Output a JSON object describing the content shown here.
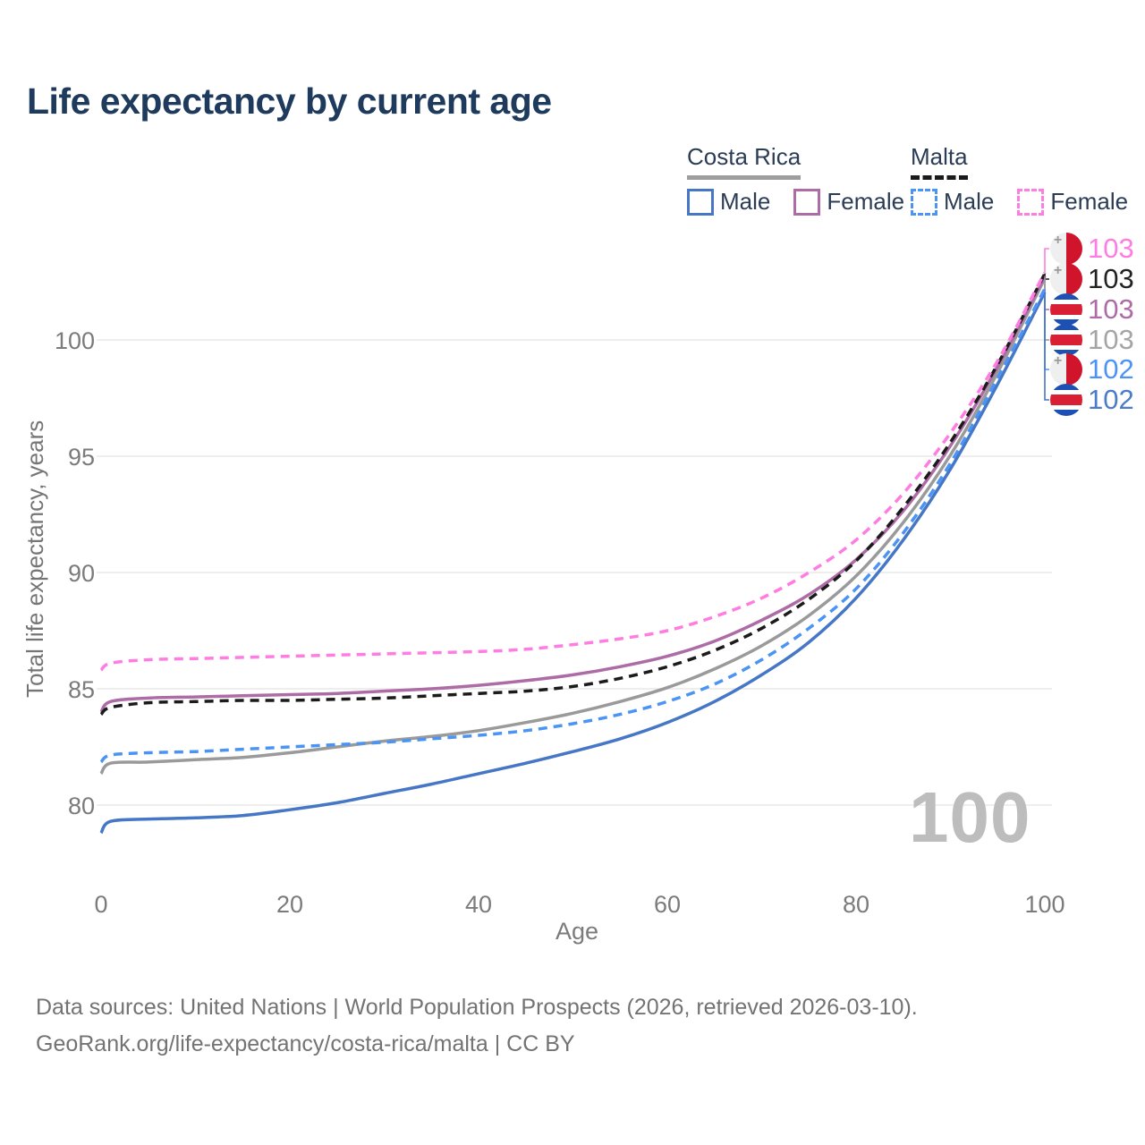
{
  "title": "Life expectancy by current age",
  "legend": {
    "groups": [
      {
        "label": "Costa Rica",
        "underline_color": "#9e9e9e",
        "underline_dashed": false,
        "items": [
          {
            "label": "Male",
            "color": "#4577c6",
            "dashed": false
          },
          {
            "label": "Female",
            "color": "#ad6ca6",
            "dashed": false
          }
        ]
      },
      {
        "label": "Malta",
        "underline_color": "#1b1b1b",
        "underline_dashed": true,
        "items": [
          {
            "label": "Male",
            "color": "#4b94f5",
            "dashed": true
          },
          {
            "label": "Female",
            "color": "#ff7de2",
            "dashed": true
          }
        ]
      }
    ]
  },
  "watermark": "100",
  "end_labels": [
    {
      "value": "103",
      "flag": "malta",
      "color": "#ff7de2",
      "series": "Malta Female"
    },
    {
      "value": "103",
      "flag": "malta",
      "color": "#222222",
      "series": "Malta Both sexes"
    },
    {
      "value": "103",
      "flag": "costa-rica",
      "color": "#ad6ca6",
      "series": "Costa Rica Female"
    },
    {
      "value": "103",
      "flag": "costa-rica",
      "color": "#a5a5a5",
      "series": "Costa Rica Both sexes"
    },
    {
      "value": "102",
      "flag": "malta",
      "color": "#4b94f5",
      "series": "Malta Male"
    },
    {
      "value": "102",
      "flag": "costa-rica",
      "color": "#4a7cc9",
      "series": "Costa Rica Male"
    }
  ],
  "footer": {
    "line1": "Data sources: United Nations | World Population Prospects (2026, retrieved 2026-03-10).",
    "line2": "GeoRank.org/life-expectancy/costa-rica/malta | CC BY"
  },
  "chart_data": {
    "type": "line",
    "title": "Life expectancy by current age",
    "xlabel": "Age",
    "ylabel": "Total life expectancy, years",
    "xlim": [
      0,
      100
    ],
    "ylim": [
      78,
      103.5
    ],
    "xticks": [
      0,
      20,
      40,
      60,
      80,
      100
    ],
    "yticks": [
      80,
      85,
      90,
      95,
      100
    ],
    "grid": "horizontal",
    "legend_position": "top-right",
    "x": [
      0,
      1,
      5,
      10,
      15,
      20,
      25,
      30,
      35,
      40,
      45,
      50,
      55,
      60,
      65,
      70,
      75,
      80,
      85,
      90,
      95,
      100
    ],
    "series": [
      {
        "name": "Malta Female",
        "country": "Malta",
        "sex": "Female",
        "color": "#ff7de2",
        "dashed": true,
        "end_label": 103,
        "values": [
          85.8,
          86.1,
          86.25,
          86.3,
          86.35,
          86.4,
          86.45,
          86.5,
          86.55,
          86.6,
          86.7,
          86.9,
          87.15,
          87.5,
          88.1,
          88.9,
          90.0,
          91.4,
          93.4,
          96.0,
          99.1,
          102.9
        ]
      },
      {
        "name": "Malta Both sexes",
        "country": "Malta",
        "sex": "Both sexes",
        "color": "#1b1b1b",
        "dashed": true,
        "end_label": 103,
        "values": [
          83.9,
          84.2,
          84.4,
          84.45,
          84.5,
          84.5,
          84.55,
          84.6,
          84.7,
          84.8,
          84.9,
          85.1,
          85.45,
          85.95,
          86.65,
          87.6,
          88.85,
          90.5,
          92.8,
          95.6,
          98.95,
          102.85
        ]
      },
      {
        "name": "Costa Rica Female",
        "country": "Costa Rica",
        "sex": "Female",
        "color": "#ad6ca6",
        "dashed": false,
        "end_label": 103,
        "values": [
          84.0,
          84.45,
          84.6,
          84.65,
          84.7,
          84.75,
          84.8,
          84.9,
          85.0,
          85.15,
          85.35,
          85.6,
          85.95,
          86.4,
          87.05,
          87.95,
          89.05,
          90.55,
          92.65,
          95.45,
          98.85,
          102.75
        ]
      },
      {
        "name": "Costa Rica Both sexes",
        "country": "Costa Rica",
        "sex": "Both sexes",
        "color": "#9a9a9a",
        "dashed": false,
        "end_label": 103,
        "values": [
          81.35,
          81.8,
          81.85,
          81.95,
          82.05,
          82.25,
          82.5,
          82.75,
          82.95,
          83.2,
          83.55,
          83.95,
          84.45,
          85.05,
          85.85,
          86.85,
          88.15,
          89.85,
          92.15,
          95.05,
          98.6,
          102.65
        ]
      },
      {
        "name": "Malta Male",
        "country": "Malta",
        "sex": "Male",
        "color": "#4b94f5",
        "dashed": true,
        "end_label": 102,
        "values": [
          81.85,
          82.15,
          82.25,
          82.3,
          82.4,
          82.5,
          82.6,
          82.7,
          82.85,
          83.0,
          83.2,
          83.5,
          83.9,
          84.45,
          85.2,
          86.25,
          87.6,
          89.3,
          91.7,
          94.7,
          98.35,
          102.2
        ]
      },
      {
        "name": "Costa Rica Male",
        "country": "Costa Rica",
        "sex": "Male",
        "color": "#4577c6",
        "dashed": false,
        "end_label": 102,
        "values": [
          78.8,
          79.3,
          79.4,
          79.45,
          79.55,
          79.8,
          80.1,
          80.5,
          80.9,
          81.35,
          81.8,
          82.3,
          82.85,
          83.55,
          84.45,
          85.6,
          87.0,
          88.9,
          91.4,
          94.45,
          98.1,
          102.05
        ]
      }
    ]
  }
}
